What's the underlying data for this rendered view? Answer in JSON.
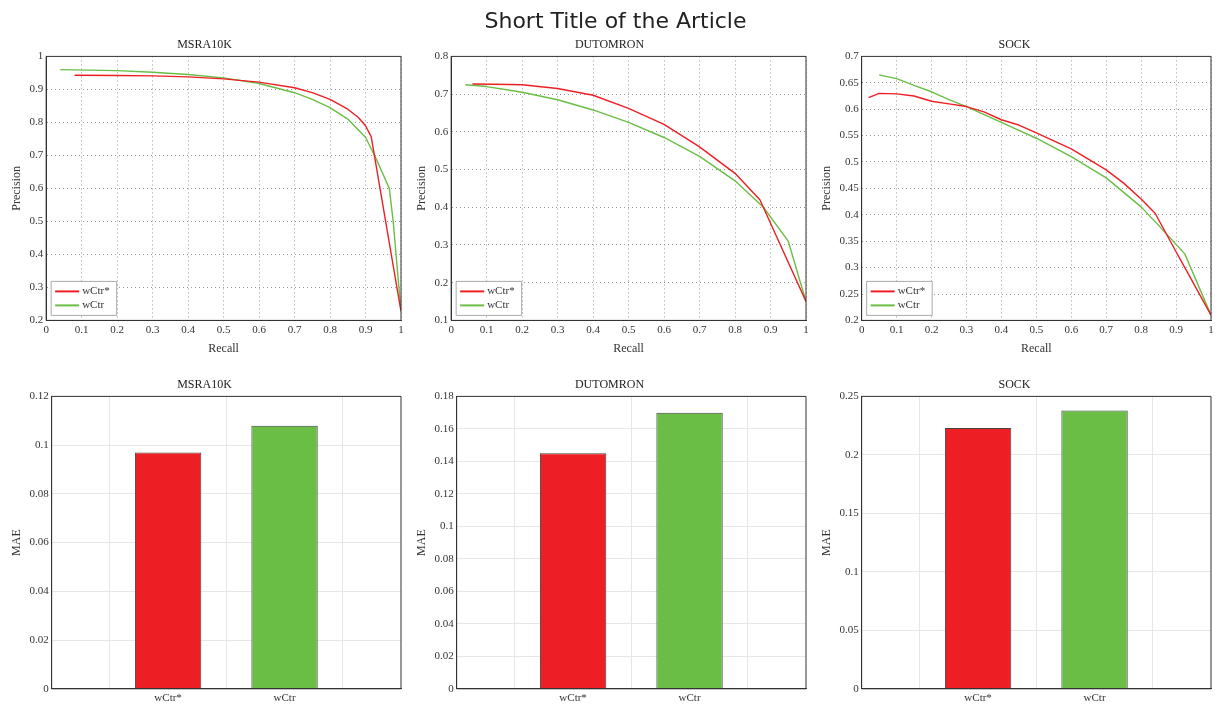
{
  "chart_data": [
    {
      "type": "other",
      "title": "Short Title of the Article"
    },
    {
      "type": "line",
      "title": "MSRA10K",
      "xlabel": "Recall",
      "ylabel": "Precision",
      "xlim": [
        0,
        1
      ],
      "xticks": [
        0,
        0.1,
        0.2,
        0.3,
        0.4,
        0.5,
        0.6,
        0.7,
        0.8,
        0.9,
        1
      ],
      "ylim": [
        0.2,
        1
      ],
      "yticks": [
        0.2,
        0.3,
        0.4,
        0.5,
        0.6,
        0.7,
        0.8,
        0.9,
        1
      ],
      "grid": true,
      "legend": "bottom left",
      "series": [
        {
          "name": "wCtr*",
          "color": "#ee1f24",
          "x": [
            0.08,
            0.2,
            0.3,
            0.4,
            0.5,
            0.6,
            0.7,
            0.75,
            0.8,
            0.85,
            0.88,
            0.9,
            0.916,
            1
          ],
          "values": [
            0.943,
            0.942,
            0.941,
            0.938,
            0.932,
            0.922,
            0.905,
            0.89,
            0.87,
            0.84,
            0.815,
            0.79,
            0.757,
            0.227
          ]
        },
        {
          "name": "wCtr",
          "color": "#6abd45",
          "x": [
            0.04,
            0.2,
            0.3,
            0.4,
            0.5,
            0.6,
            0.7,
            0.75,
            0.8,
            0.85,
            0.9,
            0.93,
            0.967,
            0.978,
            0.99,
            1
          ],
          "values": [
            0.96,
            0.957,
            0.952,
            0.945,
            0.935,
            0.918,
            0.89,
            0.87,
            0.845,
            0.81,
            0.755,
            0.69,
            0.6,
            0.5,
            0.35,
            0.23
          ]
        }
      ]
    },
    {
      "type": "line",
      "title": "DUTOMRON",
      "xlabel": "Recall",
      "ylabel": "Precision",
      "xlim": [
        0,
        1
      ],
      "xticks": [
        0,
        0.1,
        0.2,
        0.3,
        0.4,
        0.5,
        0.6,
        0.7,
        0.8,
        0.9,
        1
      ],
      "ylim": [
        0.1,
        0.8
      ],
      "yticks": [
        0.1,
        0.2,
        0.3,
        0.4,
        0.5,
        0.6,
        0.7,
        0.8
      ],
      "grid": true,
      "legend": "bottom left",
      "series": [
        {
          "name": "wCtr*",
          "color": "#ee1f24",
          "x": [
            0.06,
            0.2,
            0.3,
            0.4,
            0.5,
            0.6,
            0.7,
            0.8,
            0.87,
            1
          ],
          "values": [
            0.727,
            0.725,
            0.715,
            0.697,
            0.662,
            0.62,
            0.56,
            0.49,
            0.42,
            0.15
          ]
        },
        {
          "name": "wCtr",
          "color": "#6abd45",
          "x": [
            0.04,
            0.1,
            0.2,
            0.3,
            0.4,
            0.5,
            0.6,
            0.7,
            0.8,
            0.88,
            0.95,
            1
          ],
          "values": [
            0.725,
            0.72,
            0.705,
            0.685,
            0.658,
            0.625,
            0.585,
            0.535,
            0.47,
            0.4,
            0.31,
            0.15
          ]
        }
      ]
    },
    {
      "type": "line",
      "title": "SOCK",
      "xlabel": "Recall",
      "ylabel": "Precision",
      "xlim": [
        0,
        1
      ],
      "xticks": [
        0,
        0.1,
        0.2,
        0.3,
        0.4,
        0.5,
        0.6,
        0.7,
        0.8,
        0.9,
        1
      ],
      "ylim": [
        0.2,
        0.7
      ],
      "yticks": [
        0.2,
        0.25,
        0.3,
        0.35,
        0.4,
        0.45,
        0.5,
        0.55,
        0.6,
        0.65,
        0.7
      ],
      "grid": true,
      "legend": "bottom left",
      "series": [
        {
          "name": "wCtr*",
          "color": "#ee1f24",
          "x": [
            0.02,
            0.05,
            0.1,
            0.15,
            0.2,
            0.25,
            0.3,
            0.35,
            0.4,
            0.45,
            0.5,
            0.55,
            0.6,
            0.65,
            0.7,
            0.75,
            0.8,
            0.84,
            0.9,
            0.95,
            1
          ],
          "values": [
            0.622,
            0.63,
            0.629,
            0.625,
            0.615,
            0.61,
            0.605,
            0.595,
            0.58,
            0.57,
            0.555,
            0.54,
            0.525,
            0.505,
            0.485,
            0.46,
            0.43,
            0.403,
            0.33,
            0.27,
            0.21
          ]
        },
        {
          "name": "wCtr",
          "color": "#6abd45",
          "x": [
            0.05,
            0.1,
            0.15,
            0.2,
            0.25,
            0.3,
            0.4,
            0.5,
            0.6,
            0.7,
            0.8,
            0.85,
            0.925,
            1
          ],
          "values": [
            0.665,
            0.658,
            0.645,
            0.633,
            0.618,
            0.605,
            0.575,
            0.545,
            0.51,
            0.47,
            0.415,
            0.38,
            0.326,
            0.21
          ]
        }
      ]
    },
    {
      "type": "bar",
      "title": "MSRA10K",
      "ylabel": "MAE",
      "categories": [
        "wCtr*",
        "wCtr"
      ],
      "values": [
        0.097,
        0.108
      ],
      "colors": [
        "#ee1f24",
        "#6abd45"
      ],
      "ylim": [
        0,
        0.12
      ],
      "yticks": [
        0,
        0.02,
        0.04,
        0.06,
        0.08,
        0.1,
        0.12
      ],
      "grid": true
    },
    {
      "type": "bar",
      "title": "DUTOMRON",
      "ylabel": "MAE",
      "categories": [
        "wCtr*",
        "wCtr"
      ],
      "values": [
        0.145,
        0.17
      ],
      "colors": [
        "#ee1f24",
        "#6abd45"
      ],
      "ylim": [
        0,
        0.18
      ],
      "yticks": [
        0,
        0.02,
        0.04,
        0.06,
        0.08,
        0.1,
        0.12,
        0.14,
        0.16,
        0.18
      ],
      "grid": true
    },
    {
      "type": "bar",
      "title": "SOCK",
      "ylabel": "MAE",
      "categories": [
        "wCtr*",
        "wCtr"
      ],
      "values": [
        0.223,
        0.238
      ],
      "colors": [
        "#ee1f24",
        "#6abd45"
      ],
      "ylim": [
        0,
        0.25
      ],
      "yticks": [
        0,
        0.05,
        0.1,
        0.15,
        0.2,
        0.25
      ],
      "grid": true
    }
  ]
}
